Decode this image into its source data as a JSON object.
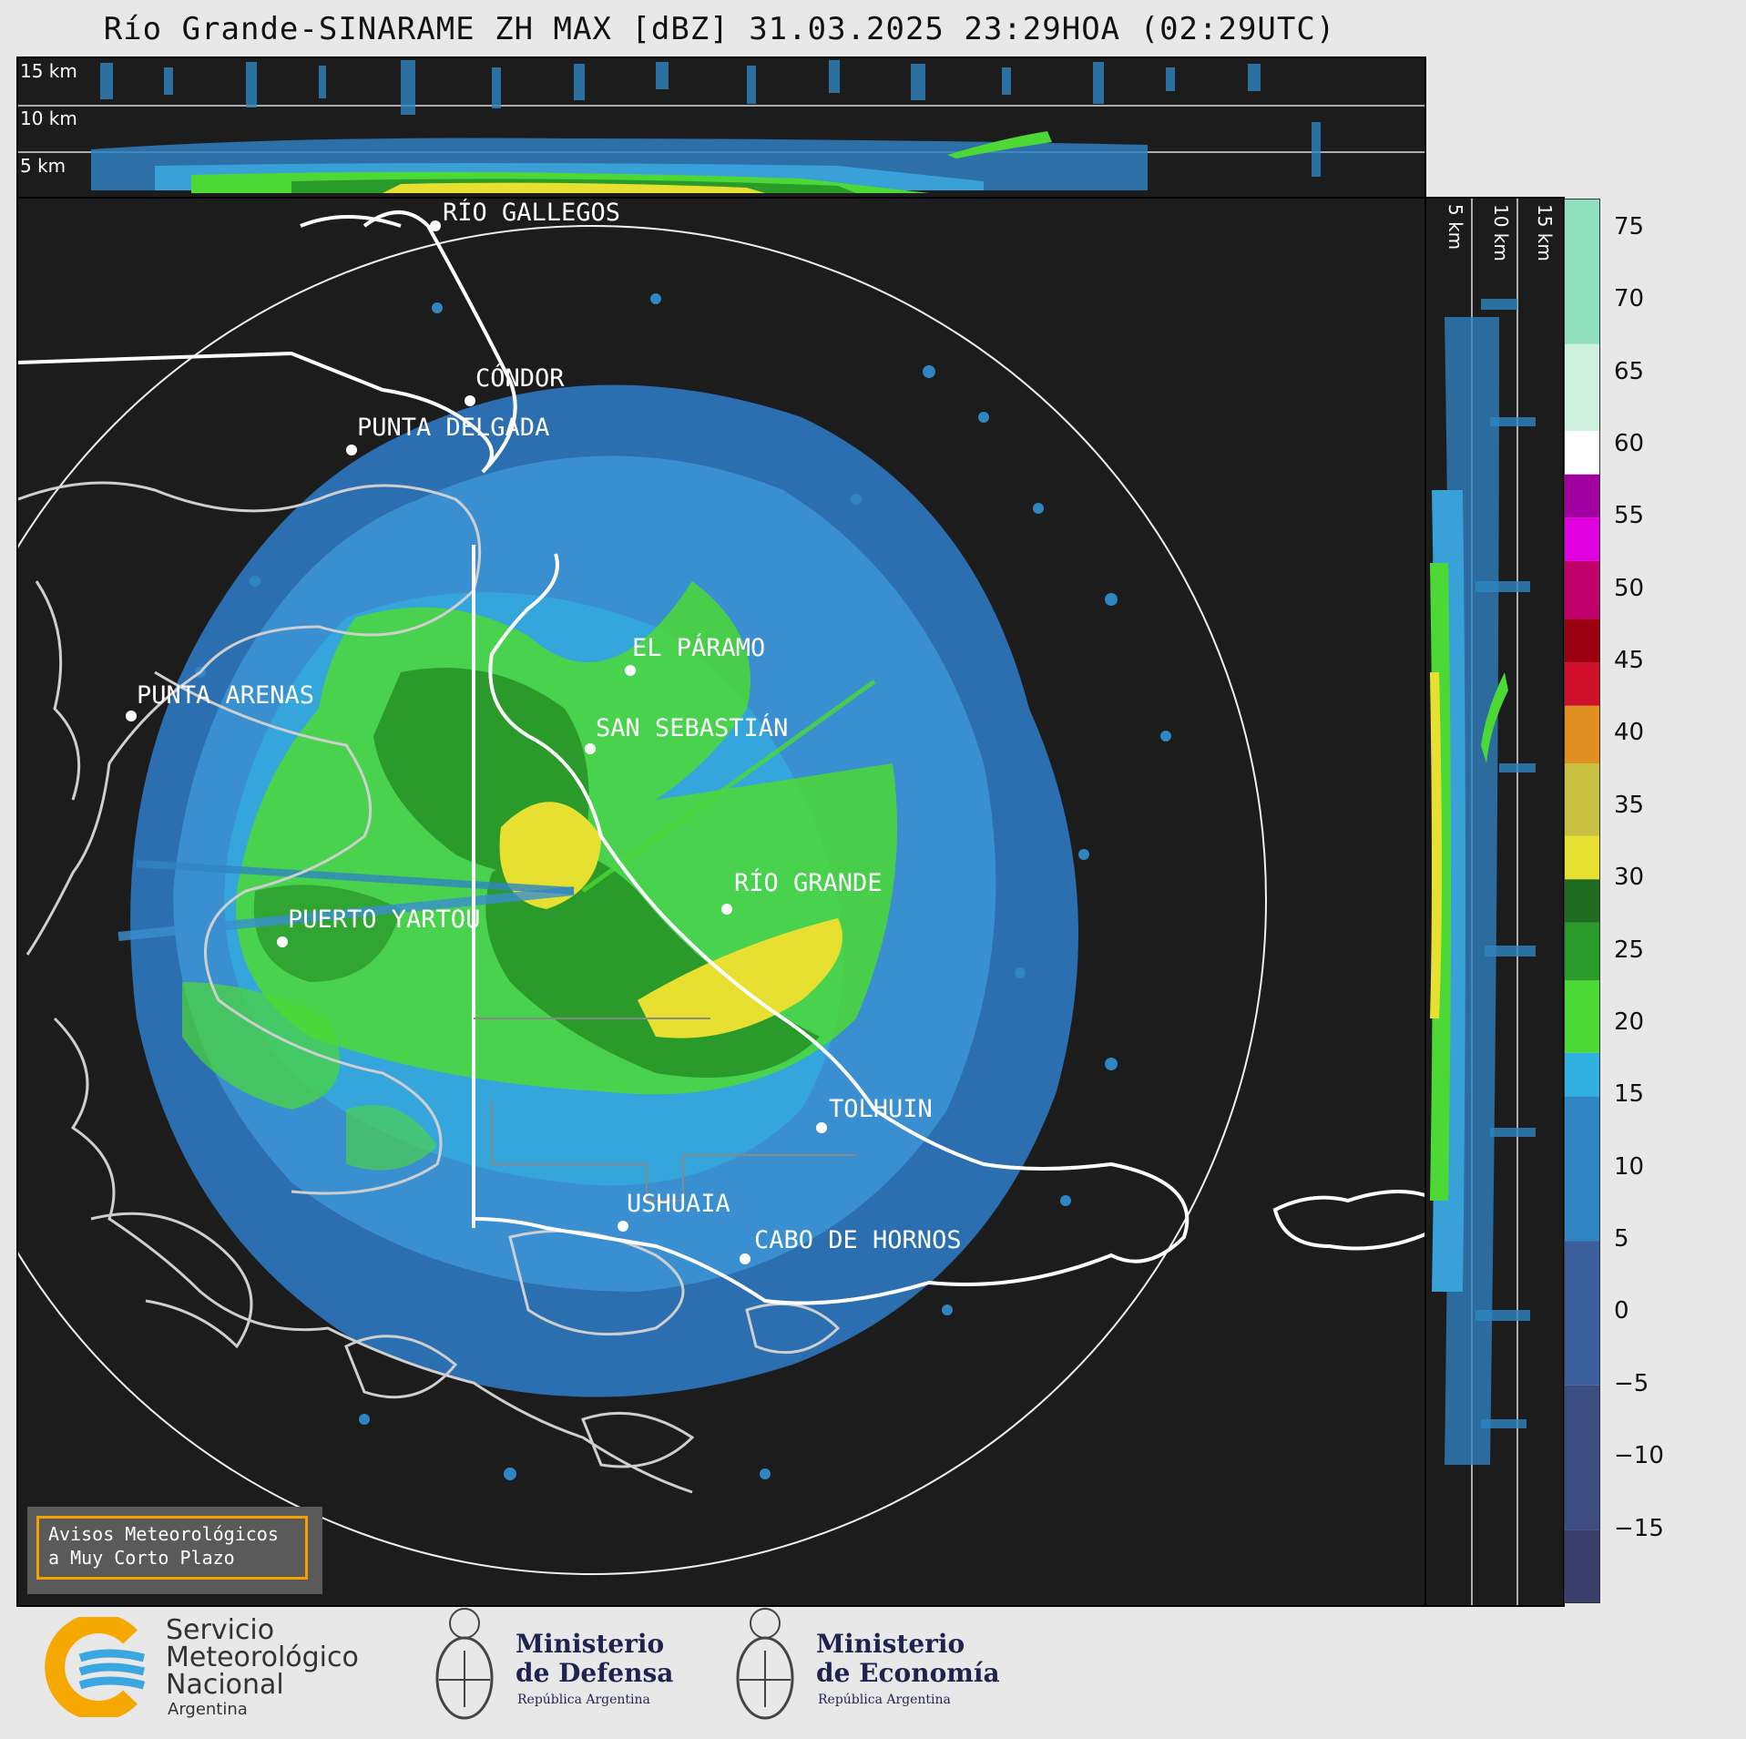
{
  "title": "Río Grande-SINARAME ZH MAX [dBZ] 31.03.2025 23:29HOA (02:29UTC)",
  "top_panel": {
    "height_labels": [
      "15 km",
      "10 km",
      "5 km"
    ]
  },
  "side_panel": {
    "height_labels": [
      "5 km",
      "10 km",
      "15 km"
    ]
  },
  "cities": [
    {
      "name": "RÍO GALLEGOS"
    },
    {
      "name": "CÓNDOR"
    },
    {
      "name": "PUNTA DELGADA"
    },
    {
      "name": "EL PÁRAMO"
    },
    {
      "name": "SAN SEBASTIÁN"
    },
    {
      "name": "PUNTA ARENAS"
    },
    {
      "name": "RÍO GRANDE"
    },
    {
      "name": "PUERTO YARTOU"
    },
    {
      "name": "TOLHUIN"
    },
    {
      "name": "USHUAIA"
    },
    {
      "name": "CABO DE HORNOS"
    }
  ],
  "colorbar": {
    "unit": "dBZ",
    "ticks": [
      "75",
      "70",
      "65",
      "60",
      "55",
      "50",
      "45",
      "40",
      "35",
      "30",
      "25",
      "20",
      "15",
      "10",
      "5",
      "0",
      "−5",
      "−10",
      "−15"
    ],
    "range": [
      -20,
      77
    ],
    "colors": {
      "low": "#3a3f6e",
      "mid_low": "#3a5f9a",
      "blue": "#2f86c2",
      "cyan": "#2fb0e0",
      "green_light": "#4cd935",
      "green": "#2a9a2a",
      "green_dark": "#1f6b1f",
      "yellow": "#e8e030",
      "olive": "#c8c040",
      "orange": "#e09020",
      "red": "#d0102a",
      "dark_red": "#9a0010",
      "magenta": "#e000e0",
      "purple": "#a000a0",
      "white": "#ffffff",
      "mint": "#90e0c0"
    }
  },
  "notice": {
    "line1": "Avisos Meteorológicos",
    "line2": "a Muy Corto Plazo"
  },
  "logos": {
    "smn": {
      "line1": "Servicio",
      "line2": "Meteorológico",
      "line3": "Nacional",
      "line4": "Argentina"
    },
    "defensa": {
      "line1": "Ministerio",
      "line2": "de Defensa",
      "sub": "República Argentina"
    },
    "economia": {
      "line1": "Ministerio",
      "line2": "de Economía",
      "sub": "República Argentina"
    }
  }
}
